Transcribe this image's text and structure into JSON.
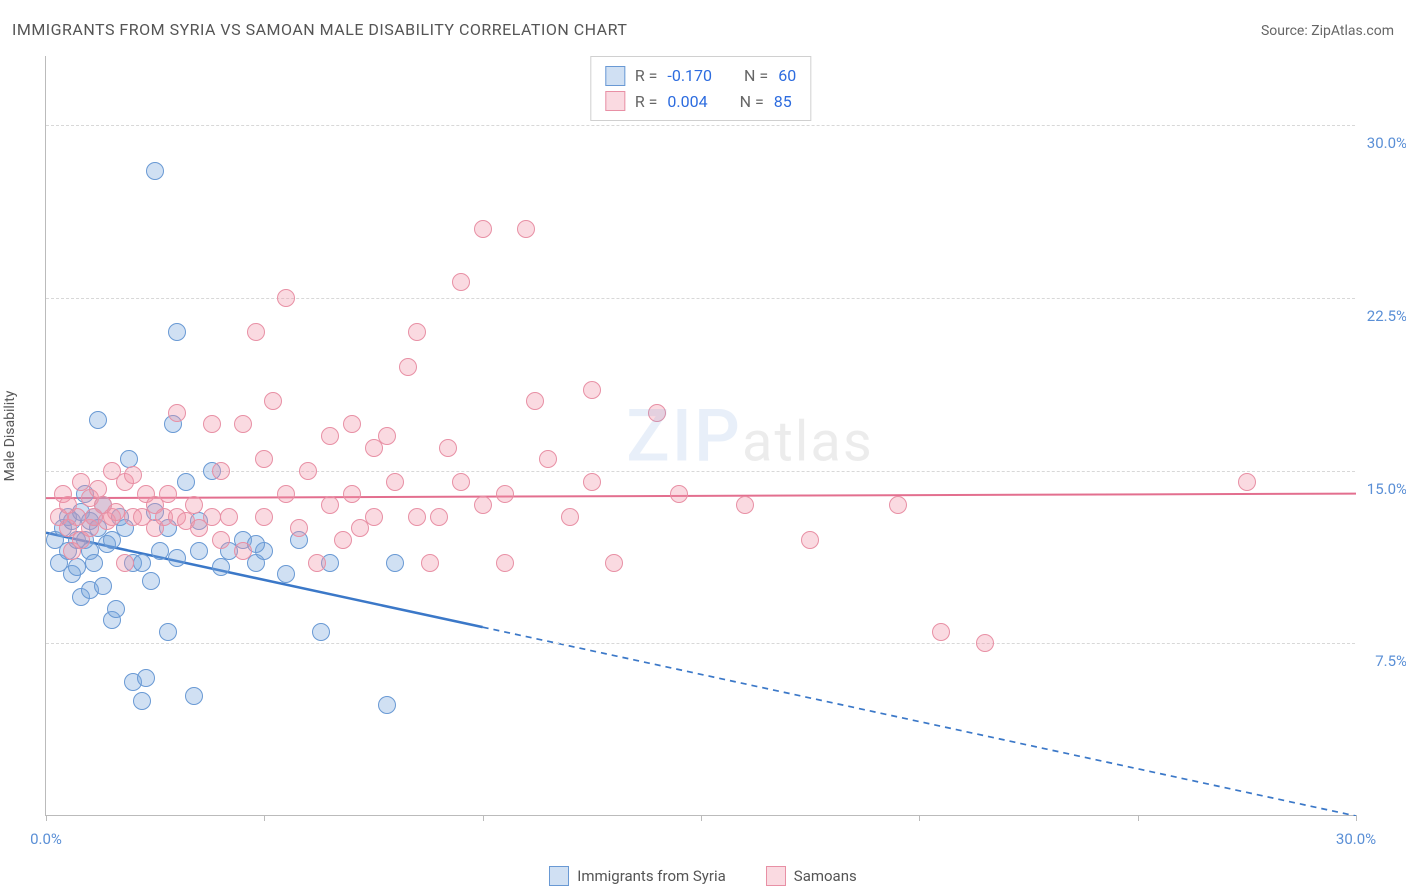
{
  "title": "IMMIGRANTS FROM SYRIA VS SAMOAN MALE DISABILITY CORRELATION CHART",
  "source_label": "Source: ZipAtlas.com",
  "watermark": {
    "part1": "ZIP",
    "part2": "atlas"
  },
  "y_axis_label": "Male Disability",
  "chart": {
    "type": "scatter",
    "xlim": [
      0,
      30
    ],
    "ylim": [
      0,
      33
    ],
    "x_ticks": [
      0,
      5,
      10,
      15,
      20,
      25,
      30
    ],
    "x_tick_labels": [
      "0.0%",
      "",
      "",
      "",
      "",
      "",
      "30.0%"
    ],
    "y_gridlines": [
      7.5,
      15.0,
      22.5,
      30.0
    ],
    "y_tick_labels": [
      "7.5%",
      "15.0%",
      "22.5%",
      "30.0%"
    ],
    "y_tick_label_x_right": 1348,
    "background_color": "#ffffff",
    "grid_color": "#d8d8d8",
    "axis_color": "#bbbbbb",
    "dot_radius": 9,
    "dot_border_width": 1.5,
    "series": [
      {
        "name": "Immigrants from Syria",
        "fill": "rgba(121,165,221,0.35)",
        "stroke": "#6999d4",
        "trend": {
          "y_at_x0": 12.3,
          "y_at_x30": 0.0,
          "extends_dashed_after_x": 10,
          "color": "#3b78c8",
          "width": 2.5,
          "dash": "6,5"
        },
        "R": "-0.170",
        "N": "60",
        "points": [
          [
            0.2,
            12.0
          ],
          [
            0.3,
            11.0
          ],
          [
            0.4,
            12.5
          ],
          [
            0.5,
            13.0
          ],
          [
            0.5,
            11.5
          ],
          [
            0.6,
            10.5
          ],
          [
            0.6,
            12.8
          ],
          [
            0.7,
            12.0
          ],
          [
            0.7,
            10.8
          ],
          [
            0.8,
            13.2
          ],
          [
            0.8,
            9.5
          ],
          [
            0.9,
            12.0
          ],
          [
            0.9,
            14.0
          ],
          [
            1.0,
            11.5
          ],
          [
            1.0,
            12.8
          ],
          [
            1.0,
            9.8
          ],
          [
            1.1,
            13.0
          ],
          [
            1.1,
            11.0
          ],
          [
            1.2,
            12.5
          ],
          [
            1.2,
            17.2
          ],
          [
            1.3,
            10.0
          ],
          [
            1.3,
            13.5
          ],
          [
            1.4,
            11.8
          ],
          [
            1.5,
            8.5
          ],
          [
            1.5,
            12.0
          ],
          [
            1.6,
            9.0
          ],
          [
            1.7,
            13.0
          ],
          [
            1.8,
            12.5
          ],
          [
            1.9,
            15.5
          ],
          [
            2.0,
            11.0
          ],
          [
            2.0,
            5.8
          ],
          [
            2.2,
            5.0
          ],
          [
            2.2,
            11.0
          ],
          [
            2.3,
            6.0
          ],
          [
            2.4,
            10.2
          ],
          [
            2.5,
            13.2
          ],
          [
            2.5,
            28.0
          ],
          [
            2.8,
            12.5
          ],
          [
            2.8,
            8.0
          ],
          [
            2.9,
            17.0
          ],
          [
            3.0,
            11.2
          ],
          [
            3.0,
            21.0
          ],
          [
            3.2,
            14.5
          ],
          [
            3.4,
            5.2
          ],
          [
            3.5,
            11.5
          ],
          [
            3.5,
            12.8
          ],
          [
            3.8,
            15.0
          ],
          [
            4.0,
            10.8
          ],
          [
            4.2,
            11.5
          ],
          [
            4.5,
            12.0
          ],
          [
            4.8,
            11.0
          ],
          [
            5.0,
            11.5
          ],
          [
            5.5,
            10.5
          ],
          [
            5.8,
            12.0
          ],
          [
            6.3,
            8.0
          ],
          [
            6.5,
            11.0
          ],
          [
            7.8,
            4.8
          ],
          [
            8.0,
            11.0
          ],
          [
            4.8,
            11.8
          ],
          [
            2.6,
            11.5
          ]
        ]
      },
      {
        "name": "Samoans",
        "fill": "rgba(240,150,170,0.35)",
        "stroke": "#e890a5",
        "trend": {
          "y_at_x0": 13.8,
          "y_at_x30": 14.0,
          "extends_dashed_after_x": 30,
          "color": "#e36f8f",
          "width": 2,
          "dash": ""
        },
        "R": "0.004",
        "N": "85",
        "points": [
          [
            0.3,
            13.0
          ],
          [
            0.4,
            14.0
          ],
          [
            0.5,
            12.5
          ],
          [
            0.5,
            13.5
          ],
          [
            0.6,
            11.5
          ],
          [
            0.7,
            13.0
          ],
          [
            0.8,
            14.5
          ],
          [
            0.8,
            12.0
          ],
          [
            1.0,
            13.8
          ],
          [
            1.0,
            12.5
          ],
          [
            1.1,
            13.0
          ],
          [
            1.2,
            14.2
          ],
          [
            1.3,
            13.5
          ],
          [
            1.4,
            12.8
          ],
          [
            1.5,
            13.0
          ],
          [
            1.5,
            15.0
          ],
          [
            1.6,
            13.2
          ],
          [
            1.8,
            11.0
          ],
          [
            1.8,
            14.5
          ],
          [
            2.0,
            13.0
          ],
          [
            2.0,
            14.8
          ],
          [
            2.2,
            13.0
          ],
          [
            2.3,
            14.0
          ],
          [
            2.5,
            13.5
          ],
          [
            2.5,
            12.5
          ],
          [
            2.7,
            13.0
          ],
          [
            2.8,
            14.0
          ],
          [
            3.0,
            13.0
          ],
          [
            3.0,
            17.5
          ],
          [
            3.2,
            12.8
          ],
          [
            3.4,
            13.5
          ],
          [
            3.5,
            12.5
          ],
          [
            3.8,
            13.0
          ],
          [
            3.8,
            17.0
          ],
          [
            4.0,
            15.0
          ],
          [
            4.0,
            12.0
          ],
          [
            4.2,
            13.0
          ],
          [
            4.5,
            17.0
          ],
          [
            4.5,
            11.5
          ],
          [
            4.8,
            21.0
          ],
          [
            5.0,
            15.5
          ],
          [
            5.0,
            13.0
          ],
          [
            5.2,
            18.0
          ],
          [
            5.5,
            14.0
          ],
          [
            5.5,
            22.5
          ],
          [
            5.8,
            12.5
          ],
          [
            6.0,
            15.0
          ],
          [
            6.2,
            11.0
          ],
          [
            6.5,
            13.5
          ],
          [
            6.5,
            16.5
          ],
          [
            6.8,
            12.0
          ],
          [
            7.0,
            14.0
          ],
          [
            7.0,
            17.0
          ],
          [
            7.2,
            12.5
          ],
          [
            7.5,
            16.0
          ],
          [
            7.5,
            13.0
          ],
          [
            7.8,
            16.5
          ],
          [
            8.0,
            14.5
          ],
          [
            8.3,
            19.5
          ],
          [
            8.5,
            13.0
          ],
          [
            8.5,
            21.0
          ],
          [
            8.8,
            11.0
          ],
          [
            9.0,
            13.0
          ],
          [
            9.2,
            16.0
          ],
          [
            9.5,
            14.5
          ],
          [
            9.5,
            23.2
          ],
          [
            10.0,
            13.5
          ],
          [
            10.0,
            25.5
          ],
          [
            10.5,
            14.0
          ],
          [
            10.5,
            11.0
          ],
          [
            11.0,
            25.5
          ],
          [
            11.2,
            18.0
          ],
          [
            11.5,
            15.5
          ],
          [
            12.0,
            13.0
          ],
          [
            12.5,
            14.5
          ],
          [
            12.5,
            18.5
          ],
          [
            13.0,
            11.0
          ],
          [
            14.0,
            17.5
          ],
          [
            14.5,
            14.0
          ],
          [
            16.0,
            13.5
          ],
          [
            17.5,
            12.0
          ],
          [
            19.5,
            13.5
          ],
          [
            20.5,
            8.0
          ],
          [
            21.5,
            7.5
          ],
          [
            27.5,
            14.5
          ]
        ]
      }
    ],
    "legend_top": {
      "R_label": "R =",
      "N_label": "N ="
    },
    "legend_bottom_labels": [
      "Immigrants from Syria",
      "Samoans"
    ]
  }
}
